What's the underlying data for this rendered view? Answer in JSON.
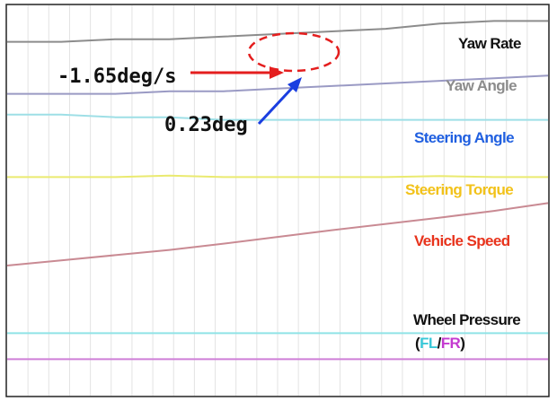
{
  "chart_data": {
    "type": "line",
    "title": "",
    "xlabel": "",
    "ylabel": "",
    "grid": true,
    "legend": "right",
    "x": [
      0,
      1,
      2,
      3,
      4,
      5,
      6,
      7,
      8,
      9,
      10
    ],
    "series": [
      {
        "name": "Yaw Rate",
        "color": "#8c8c8c",
        "values": [
          38,
          38,
          38.5,
          38.5,
          39,
          39.5,
          40,
          40.5,
          41.5,
          42,
          42
        ]
      },
      {
        "name": "Yaw Angle",
        "color": "#9a9ac4",
        "values": [
          28,
          28,
          28,
          28.5,
          28.5,
          29,
          29.5,
          30,
          30.5,
          31,
          31.5
        ]
      },
      {
        "name": "Steering Angle",
        "color": "#9edfe6",
        "values": [
          24,
          24,
          23.5,
          23.5,
          23,
          23,
          23,
          23,
          23,
          23,
          23
        ]
      },
      {
        "name": "Steering Torque",
        "color": "#eaea70",
        "values": [
          12,
          12,
          12,
          12.3,
          12,
          12,
          12,
          12,
          12.2,
          12,
          12
        ]
      },
      {
        "name": "Vehicle Speed",
        "color": "#c98a93",
        "values": [
          -5,
          -4,
          -3,
          -2,
          -0.8,
          0.5,
          1.8,
          3,
          4.2,
          5.5,
          7
        ]
      },
      {
        "name": "Wheel Pressure FL",
        "color": "#8fe3e6",
        "values": [
          -18,
          -18,
          -18,
          -18,
          -18,
          -18,
          -18,
          -18,
          -18,
          -18,
          -18
        ]
      },
      {
        "name": "Wheel Pressure FR",
        "color": "#cf7fd8",
        "values": [
          -23,
          -23,
          -23,
          -23,
          -23,
          -23,
          -23,
          -23,
          -23,
          -23,
          -23
        ]
      }
    ],
    "ylim": [
      -30,
      45
    ],
    "labels": {
      "yaw_rate": "Yaw Rate",
      "yaw_angle": "Yaw Angle",
      "steering_angle": "Steering Angle",
      "steering_torque": "Steering Torque",
      "vehicle_speed": "Vehicle Speed",
      "wheel_pressure": "Wheel Pressure",
      "paren_open": "(",
      "fl": "FL",
      "slash": "/",
      "fr": "FR",
      "paren_close": ")"
    },
    "annotations": {
      "yaw_rate_value": "-1.65deg/s",
      "yaw_angle_value": "0.23deg"
    },
    "colors": {
      "yaw_rate_label": "#111111",
      "yaw_angle_label": "#8c8c8c",
      "steering_angle_label": "#1f5fe0",
      "steering_torque_label": "#f2c21a",
      "vehicle_speed_label": "#e8331c",
      "wheel_pressure_label": "#111111",
      "fl_label": "#39c8d8",
      "fr_label": "#c43ad0",
      "arrow_red": "#e41e1e",
      "arrow_blue": "#1a3ee0",
      "ellipse": "#e41e1e"
    }
  }
}
